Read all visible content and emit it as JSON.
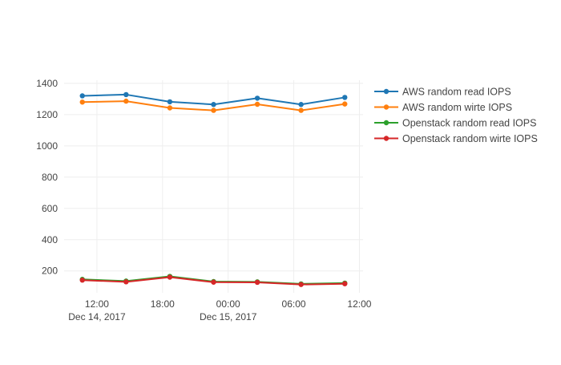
{
  "chart_data": {
    "type": "line",
    "x": [
      "2017-12-14 10:40",
      "2017-12-14 14:40",
      "2017-12-14 18:40",
      "2017-12-14 22:40",
      "2017-12-15 02:40",
      "2017-12-15 06:40",
      "2017-12-15 10:40"
    ],
    "series": [
      {
        "name": "AWS random read IOPS",
        "color": "#1f77b4",
        "values": [
          1320,
          1328,
          1282,
          1265,
          1305,
          1265,
          1310
        ]
      },
      {
        "name": "AWS random wirte IOPS",
        "color": "#ff7f0e",
        "values": [
          1280,
          1286,
          1243,
          1227,
          1266,
          1227,
          1268
        ]
      },
      {
        "name": "Openstack random read IOPS",
        "color": "#2ca02c",
        "values": [
          146,
          135,
          165,
          132,
          130,
          117,
          122
        ]
      },
      {
        "name": "Openstack random wirte IOPS",
        "color": "#d62728",
        "values": [
          141,
          130,
          160,
          128,
          127,
          113,
          118
        ]
      }
    ],
    "x_ticks": [
      {
        "at": "2017-12-14 12:00",
        "label": "12:00",
        "sublabel": "Dec 14, 2017"
      },
      {
        "at": "2017-12-14 18:00",
        "label": "18:00",
        "sublabel": ""
      },
      {
        "at": "2017-12-15 00:00",
        "label": "00:00",
        "sublabel": "Dec 15, 2017"
      },
      {
        "at": "2017-12-15 06:00",
        "label": "06:00",
        "sublabel": ""
      },
      {
        "at": "2017-12-15 12:00",
        "label": "12:00",
        "sublabel": ""
      }
    ],
    "xlim": [
      "2017-12-14 09:00",
      "2017-12-15 12:20"
    ],
    "y_ticks": [
      200,
      400,
      600,
      800,
      1000,
      1200,
      1400
    ],
    "ylim": [
      60,
      1420
    ],
    "grid": true,
    "legend_position": "right",
    "title": "",
    "xlabel": "",
    "ylabel": ""
  }
}
